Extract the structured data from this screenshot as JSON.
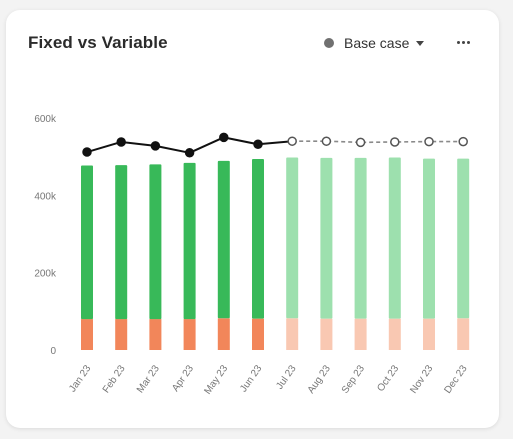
{
  "card": {
    "title": "Fixed vs Variable",
    "scenario_label": "Base case"
  },
  "colors": {
    "fixed_actual": "#38b959",
    "fixed_forecast": "#9de0ae",
    "variable_actual": "#f2865a",
    "variable_forecast": "#f9c8b2",
    "total_line": "#111111",
    "forecast_line": "#8a8a8a",
    "scenario_dot": "#707070"
  },
  "icons": {
    "scenario": "circle-dot-icon",
    "dropdown": "caret-down-icon",
    "more": "more-horizontal-icon"
  },
  "chart_data": {
    "type": "bar",
    "stacked": true,
    "categories": [
      "Jan 23",
      "Feb 23",
      "Mar 23",
      "Apr 23",
      "May 23",
      "Jun 23",
      "Jul 23",
      "Aug 23",
      "Sep 23",
      "Oct 23",
      "Nov 23",
      "Dec 23"
    ],
    "forecast_start_index": 6,
    "yticks": [
      "0",
      "200k",
      "400k",
      "600k"
    ],
    "ytick_values": [
      0,
      200000,
      400000,
      600000
    ],
    "ylim": [
      0,
      600000
    ],
    "grid": false,
    "series": [
      {
        "values": [
          80000,
          80000,
          80000,
          80000,
          82000,
          81000,
          82000,
          81000,
          81000,
          81000,
          81000,
          82000
        ]
      },
      {
        "values": [
          397000,
          398000,
          400000,
          404000,
          407000,
          413000,
          416000,
          416000,
          416000,
          417000,
          414000,
          413000
        ]
      }
    ],
    "line": {
      "values": [
        512000,
        538000,
        528000,
        510000,
        550000,
        532000,
        540000,
        540000,
        537000,
        538000,
        539000,
        539000
      ]
    }
  }
}
